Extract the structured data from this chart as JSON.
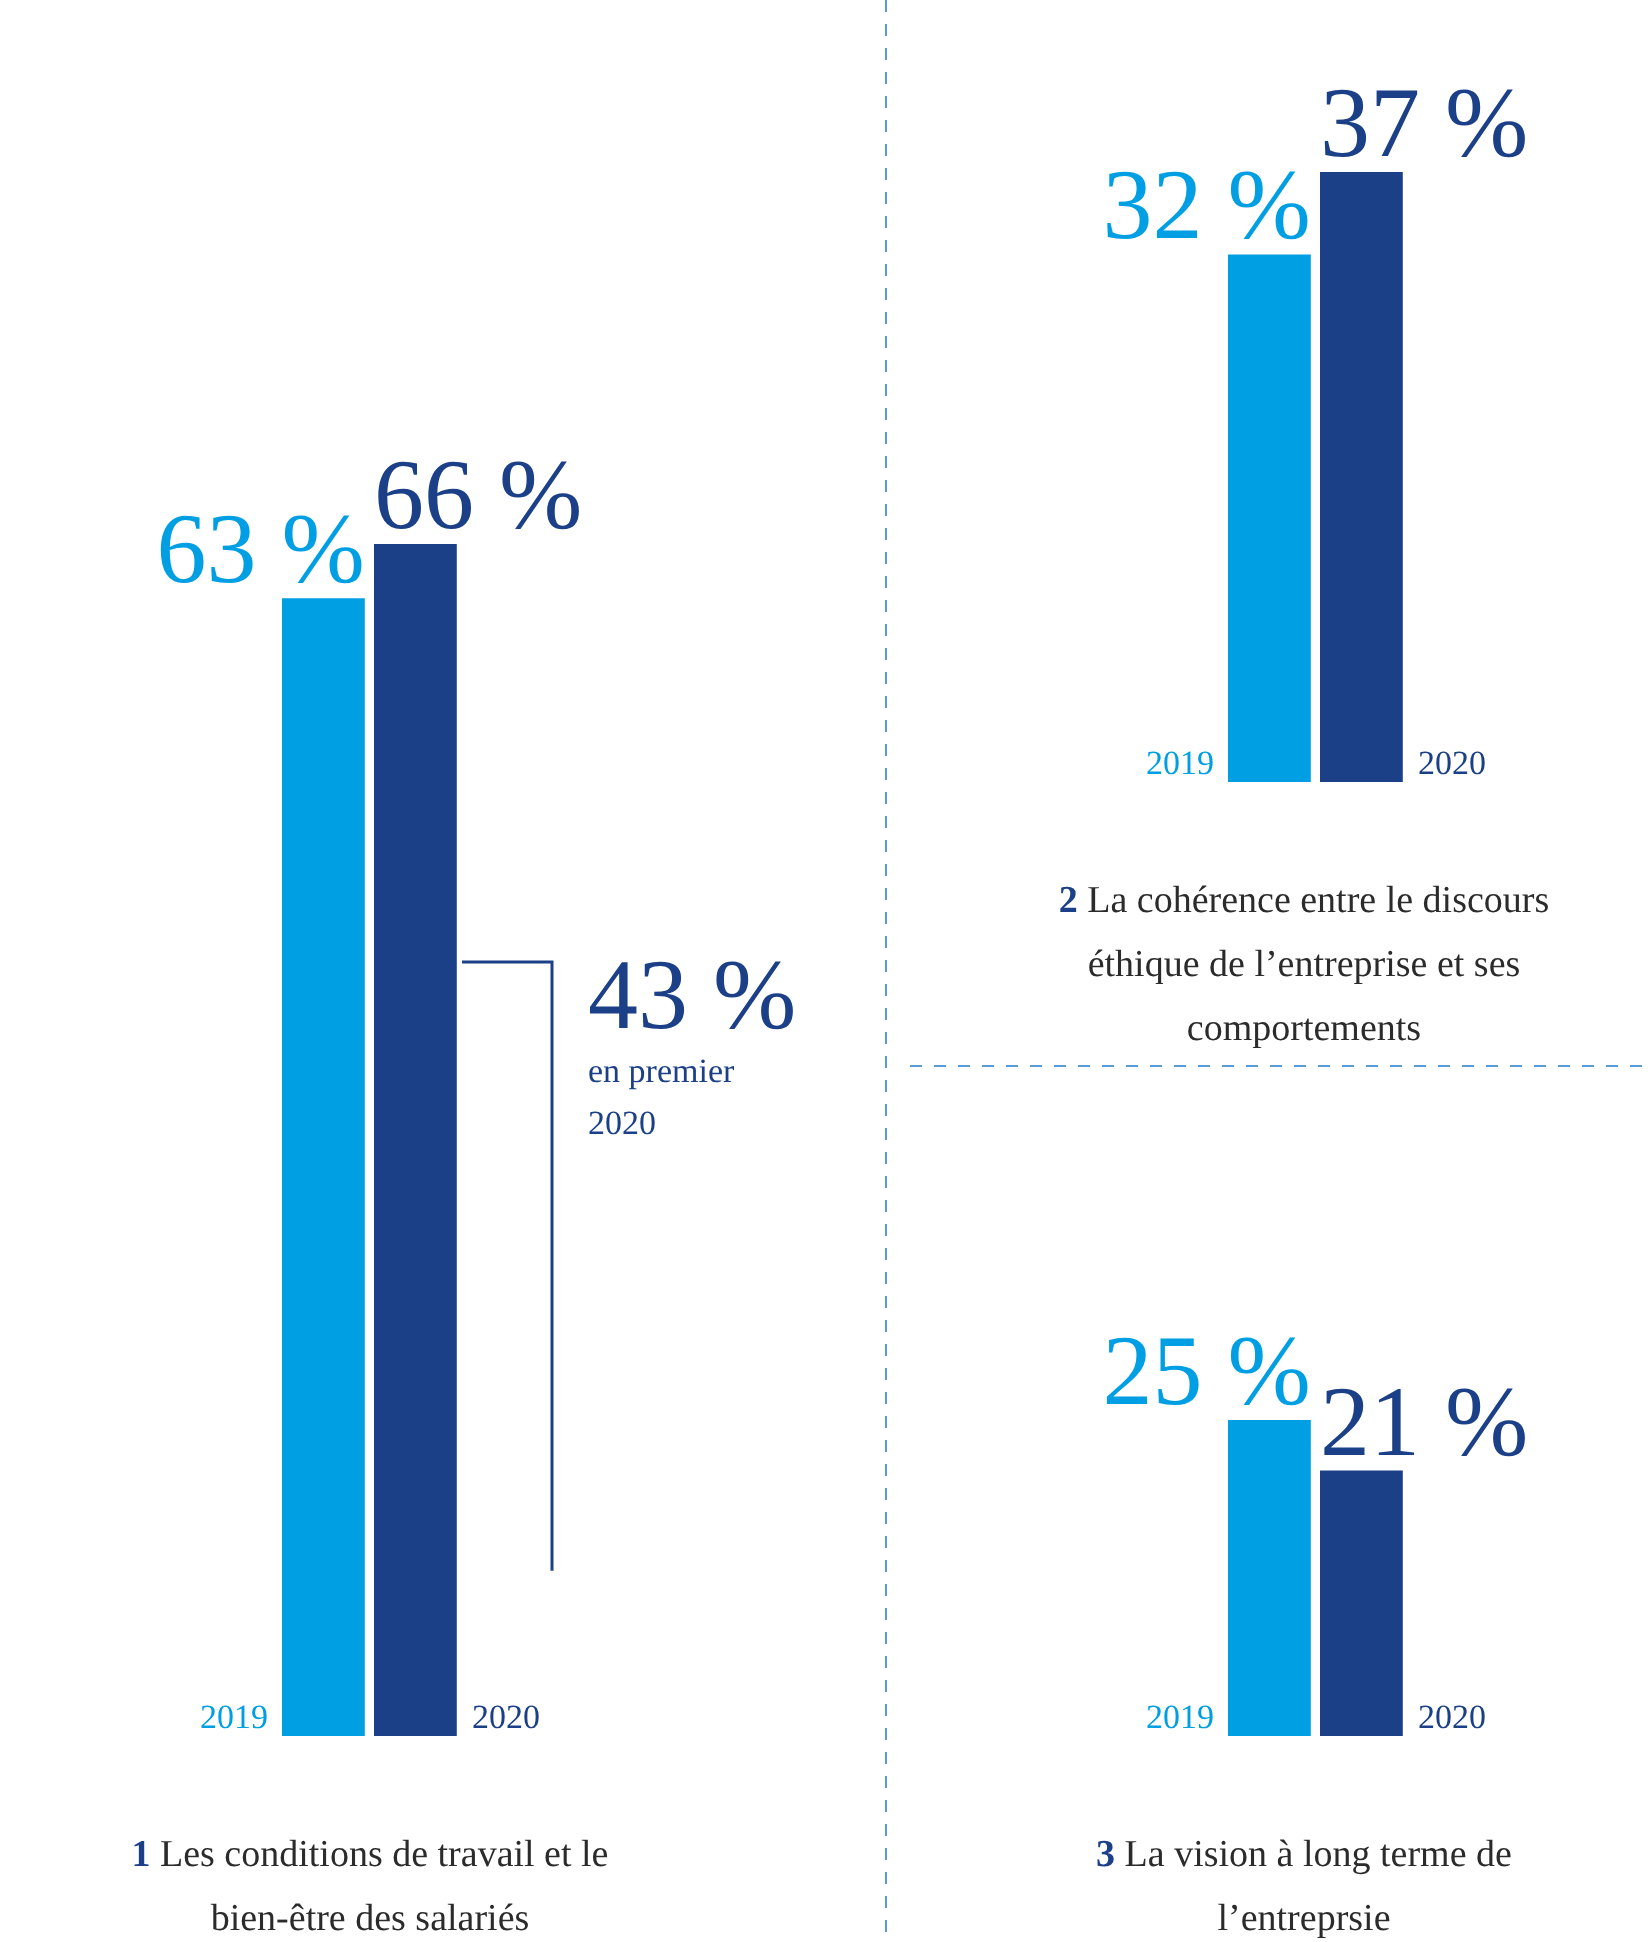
{
  "chart_data": [
    {
      "type": "bar",
      "title": "1 Les conditions de travail et le bien-être des salariés",
      "categories": [
        "2019",
        "2020"
      ],
      "values": [
        63,
        66
      ],
      "value_labels": [
        "63 %",
        "66 %"
      ],
      "colors": [
        "#009fe3",
        "#1b4088"
      ],
      "tick_labels": "x",
      "annotations": [
        "43 %\nen premier\n2020"
      ]
    },
    {
      "type": "bar",
      "title": "2 La cohérence entre le discours éthique de l’entreprise et ses comportements",
      "categories": [
        "2019",
        "2020"
      ],
      "values": [
        32,
        37
      ],
      "value_labels": [
        "32 %",
        "37 %"
      ],
      "colors": [
        "#009fe3",
        "#1b4088"
      ],
      "tick_labels": "x"
    },
    {
      "type": "bar",
      "title": "3 La vision à long terme de l’entreprsie",
      "categories": [
        "2019",
        "2020"
      ],
      "values": [
        25,
        21
      ],
      "value_labels": [
        "25 %",
        "21 %"
      ],
      "colors": [
        "#009fe3",
        "#1b4088"
      ],
      "tick_labels": "x"
    }
  ]
}
